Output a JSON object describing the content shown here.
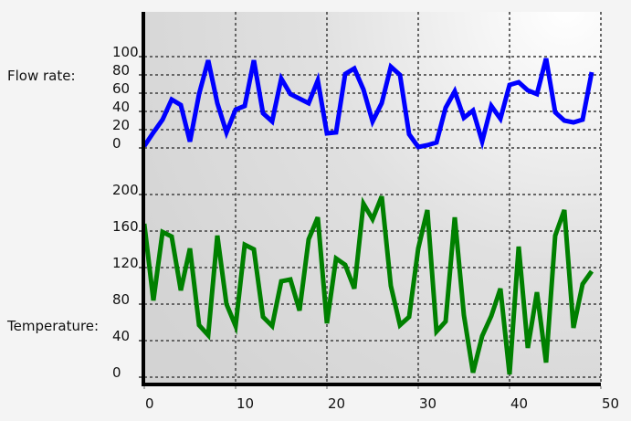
{
  "chart_data": [
    {
      "type": "line",
      "title": "",
      "ylabel": "Flow rate:",
      "xlabel": "",
      "x": [
        0,
        1,
        2,
        3,
        4,
        5,
        6,
        7,
        8,
        9,
        10,
        11,
        12,
        13,
        14,
        15,
        16,
        17,
        18,
        19,
        20,
        21,
        22,
        23,
        24,
        25,
        26,
        27,
        28,
        29,
        30,
        31,
        32,
        33,
        34,
        35,
        36,
        37,
        38,
        39,
        40,
        41,
        42,
        43,
        44,
        45,
        46,
        47,
        48,
        49
      ],
      "series": [
        {
          "name": "Flow rate",
          "color": "#0000ff",
          "values": [
            2,
            17,
            31,
            53,
            47,
            7,
            59,
            96,
            49,
            17,
            42,
            46,
            96,
            38,
            29,
            76,
            59,
            54,
            49,
            74,
            16,
            17,
            81,
            87,
            64,
            29,
            49,
            89,
            80,
            15,
            1,
            3,
            6,
            44,
            62,
            33,
            41,
            7,
            46,
            32,
            69,
            72,
            63,
            59,
            98,
            39,
            30,
            28,
            31,
            83
          ]
        }
      ],
      "yticks": [
        "0",
        "20",
        "40",
        "60",
        "80",
        "100"
      ],
      "ylim": [
        0,
        100
      ],
      "xlim": [
        0,
        50
      ],
      "grid": true
    },
    {
      "type": "line",
      "title": "",
      "ylabel": "Temperature:",
      "xlabel": "",
      "x": [
        0,
        1,
        2,
        3,
        4,
        5,
        6,
        7,
        8,
        9,
        10,
        11,
        12,
        13,
        14,
        15,
        16,
        17,
        18,
        19,
        20,
        21,
        22,
        23,
        24,
        25,
        26,
        27,
        28,
        29,
        30,
        31,
        32,
        33,
        34,
        35,
        36,
        37,
        38,
        39,
        40,
        41,
        42,
        43,
        44,
        45,
        46,
        47,
        48,
        49
      ],
      "series": [
        {
          "name": "Temperature",
          "color": "#008000",
          "values": [
            168,
            84,
            159,
            154,
            95,
            141,
            57,
            46,
            155,
            80,
            56,
            145,
            140,
            66,
            56,
            105,
            107,
            73,
            151,
            175,
            59,
            130,
            123,
            97,
            190,
            173,
            198,
            100,
            57,
            66,
            141,
            183,
            50,
            61,
            175,
            68,
            5,
            45,
            67,
            97,
            3,
            143,
            32,
            93,
            16,
            155,
            183,
            54,
            102,
            116
          ]
        }
      ],
      "yticks": [
        "0",
        "40",
        "80",
        "120",
        "160",
        "200"
      ],
      "ylim": [
        0,
        200
      ],
      "xlim": [
        0,
        50
      ],
      "xticks": [
        "0",
        "10",
        "20",
        "30",
        "40",
        "50"
      ],
      "grid": true
    }
  ],
  "labels": {
    "flow_rate": "Flow rate:",
    "temperature": "Temperature:"
  },
  "colors": {
    "flow": "#0000ff",
    "temperature": "#008000",
    "grid": "#666666",
    "axis": "#000000",
    "plot_bg_dark": "#d3d3d3",
    "plot_bg_light": "#ffffff",
    "page_bg": "#f4f4f4"
  }
}
